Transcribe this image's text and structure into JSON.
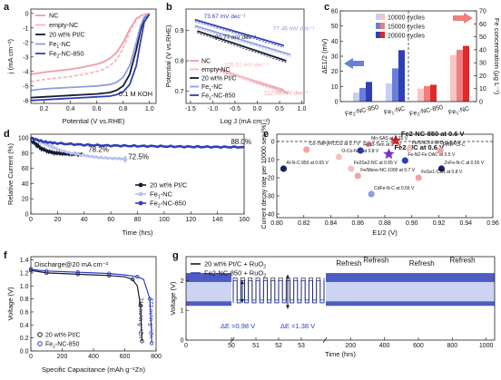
{
  "panels": [
    "a",
    "b",
    "c",
    "d",
    "e",
    "f",
    "g"
  ],
  "chart_data": [
    {
      "panel": "a",
      "type": "line",
      "xlabel": "Potential (V vs.RHE)",
      "ylabel": "j (mA cm⁻²)",
      "xlim": [
        0.1,
        1.05
      ],
      "ylim": [
        -6.2,
        0.3
      ],
      "xticks": [
        0.2,
        0.4,
        0.6,
        0.8,
        1.0
      ],
      "yticks": [
        0,
        -1,
        -2,
        -3,
        -4,
        -5,
        -6
      ],
      "annotation": "0.1 M KOH",
      "series": [
        {
          "name": "NC",
          "color": "#f39aa6",
          "dash": "",
          "x": [
            0.1,
            0.2,
            0.3,
            0.4,
            0.5,
            0.6,
            0.65,
            0.7,
            0.75,
            0.8,
            0.85,
            0.9,
            0.95,
            1.0
          ],
          "y": [
            -4.2,
            -4.05,
            -3.95,
            -3.85,
            -3.7,
            -3.5,
            -3.35,
            -3.1,
            -2.7,
            -2.0,
            -1.1,
            -0.35,
            -0.08,
            -0.02
          ]
        },
        {
          "name": "empty-NC",
          "color": "#f6b7c0",
          "dash": "4,2",
          "x": [
            0.1,
            0.2,
            0.3,
            0.4,
            0.5,
            0.6,
            0.65,
            0.7,
            0.75,
            0.8,
            0.85,
            0.9,
            0.95,
            1.0
          ],
          "y": [
            -4.7,
            -4.55,
            -4.45,
            -4.35,
            -4.2,
            -4.0,
            -3.85,
            -3.6,
            -3.2,
            -2.4,
            -1.3,
            -0.45,
            -0.1,
            -0.02
          ]
        },
        {
          "name": "20 wt% Pt/C",
          "color": "#141a33",
          "dash": "",
          "x": [
            0.1,
            0.2,
            0.3,
            0.4,
            0.5,
            0.6,
            0.7,
            0.75,
            0.8,
            0.85,
            0.9,
            0.93,
            0.96,
            1.0
          ],
          "y": [
            -5.8,
            -5.75,
            -5.7,
            -5.65,
            -5.6,
            -5.55,
            -5.45,
            -5.3,
            -5.0,
            -4.2,
            -2.5,
            -1.2,
            -0.3,
            -0.03
          ]
        },
        {
          "name": "Fe1-NC",
          "color": "#8e9ee0",
          "dash": "",
          "x": [
            0.1,
            0.2,
            0.3,
            0.4,
            0.5,
            0.6,
            0.7,
            0.75,
            0.8,
            0.85,
            0.9,
            0.93,
            0.96,
            1.0
          ],
          "y": [
            -5.3,
            -5.2,
            -5.15,
            -5.1,
            -5.05,
            -5.0,
            -4.9,
            -4.75,
            -4.4,
            -3.6,
            -2.0,
            -0.9,
            -0.25,
            -0.03
          ]
        },
        {
          "name": "Fe2-NC-850",
          "color": "#2f3fb8",
          "dash": "",
          "x": [
            0.1,
            0.2,
            0.3,
            0.4,
            0.5,
            0.6,
            0.7,
            0.75,
            0.8,
            0.85,
            0.9,
            0.93,
            0.96,
            1.0
          ],
          "y": [
            -6.0,
            -5.95,
            -5.9,
            -5.85,
            -5.8,
            -5.75,
            -5.7,
            -5.6,
            -5.4,
            -4.9,
            -3.6,
            -2.0,
            -0.6,
            -0.05
          ]
        }
      ],
      "legend": [
        {
          "label": "NC",
          "color": "#f39aa6"
        },
        {
          "label": "empty-NC",
          "color": "#f6b7c0"
        },
        {
          "label": "20 wt% Pt/C",
          "color": "#141a33"
        },
        {
          "label": "Fe",
          "sub": "1",
          "tail": "-NC",
          "color": "#8e9ee0"
        },
        {
          "label": "Fe",
          "sub": "2",
          "tail": "-NC-850",
          "color": "#2f3fb8"
        }
      ]
    },
    {
      "panel": "b",
      "type": "line",
      "xlabel": "Log J (mA cm⁻²)",
      "ylabel": "Potential (V vs.RHE)",
      "xlim": [
        -1.6,
        1.05
      ],
      "ylim": [
        0.66,
        0.97
      ],
      "xticks": [
        -1.5,
        -1.0,
        -0.5,
        0.0,
        0.5,
        1.0
      ],
      "yticks": [
        0.7,
        0.8,
        0.9
      ],
      "series": [
        {
          "name": "NC",
          "color": "#f39aa6",
          "x": [
            -0.9,
            0.7
          ],
          "y": [
            0.775,
            0.695
          ]
        },
        {
          "name": "empty-NC",
          "color": "#f6b7c0",
          "x": [
            -0.85,
            0.6
          ],
          "y": [
            0.77,
            0.705
          ]
        },
        {
          "name": "20 wt% Pt/C",
          "color": "#141a33",
          "x": [
            -1.35,
            0.65
          ],
          "y": [
            0.898,
            0.8
          ]
        },
        {
          "name": "Fe1-NC",
          "color": "#8e9ee0",
          "x": [
            -1.4,
            0.75
          ],
          "y": [
            0.915,
            0.82
          ]
        },
        {
          "name": "Fe2-NC-850",
          "color": "#2f3fb8",
          "x": [
            -1.4,
            0.6
          ],
          "y": [
            0.935,
            0.85
          ]
        }
      ],
      "slope_labels": [
        {
          "text": "73.67 mV dec⁻¹",
          "color": "#2f3fb8",
          "x": -1.2,
          "y": 0.94
        },
        {
          "text": "77.46 mV dec⁻¹",
          "color": "#8e9ee0",
          "x": 0.35,
          "y": 0.9
        },
        {
          "text": "80.77 mV dec⁻¹",
          "color": "#141a33",
          "x": -0.95,
          "y": 0.872
        },
        {
          "text": "105.52 mV dec⁻¹",
          "color": "#f6b7c0",
          "x": -0.75,
          "y": 0.78
        },
        {
          "text": "112.96 mV dec⁻¹",
          "color": "#f39aa6",
          "x": 0.15,
          "y": 0.688
        }
      ],
      "legend": [
        {
          "label": "NC",
          "color": "#f39aa6"
        },
        {
          "label": "empty-NC",
          "color": "#f6b7c0"
        },
        {
          "label": "20 wt% Pt/C",
          "color": "#141a33"
        },
        {
          "label": "Fe",
          "sub": "1",
          "tail": "-NC",
          "color": "#8e9ee0"
        },
        {
          "label": "Fe",
          "sub": "2",
          "tail": "-NC-850",
          "color": "#2f3fb8"
        }
      ]
    },
    {
      "panel": "c",
      "type": "bar",
      "left_ylabel": "ΔE1/2 (mV)",
      "right_ylabel": "Fe concentration (µg L⁻¹)",
      "left_ylim": [
        0,
        60
      ],
      "right_ylim": [
        0,
        70
      ],
      "left_yticks": [
        0,
        10,
        20,
        30,
        40,
        50,
        60
      ],
      "right_yticks": [
        0,
        10,
        20,
        30,
        40,
        50,
        60,
        70
      ],
      "legend": [
        {
          "label": "10000 cycles",
          "color_left": "#c7d0f2",
          "color_right": "#f7c5c5"
        },
        {
          "label": "15000 cycles",
          "color_left": "#6a7fd8",
          "color_right": "#ef7f7f"
        },
        {
          "label": "20000 cycles",
          "color_left": "#2f3fb8",
          "color_right": "#e02a2a"
        }
      ],
      "left_groups": [
        {
          "label": "Fe",
          "sub": "2",
          "tail": "-NC-850",
          "values": [
            6,
            9,
            13
          ]
        },
        {
          "label": "Fe",
          "sub": "1",
          "tail": "-NC",
          "values": [
            12,
            22,
            34
          ]
        }
      ],
      "right_groups": [
        {
          "label": "Fe",
          "sub": "2",
          "tail": "-NC-850",
          "values": [
            10,
            12,
            13
          ]
        },
        {
          "label": "Fe",
          "sub": "1",
          "tail": "-NC",
          "values": [
            36,
            40,
            43
          ]
        }
      ]
    },
    {
      "panel": "d",
      "type": "line",
      "xlabel": "Time (hrs)",
      "ylabel": "Relative Current (%)",
      "xlim": [
        0,
        160
      ],
      "ylim": [
        0,
        105
      ],
      "xticks": [
        0,
        20,
        40,
        60,
        80,
        100,
        120,
        140,
        160
      ],
      "yticks": [
        0,
        20,
        40,
        60,
        80,
        100
      ],
      "series": [
        {
          "name": "20 wt% Pt/C",
          "color": "#141a33",
          "x": [
            0,
            2,
            5,
            8,
            12,
            16,
            20,
            25,
            30,
            35,
            40
          ],
          "y": [
            100,
            95,
            90,
            86,
            83,
            81,
            80,
            79.2,
            78.8,
            78.4,
            78.2
          ]
        },
        {
          "name": "Fe1-NC",
          "color": "#b7c2ee",
          "x": [
            0,
            5,
            10,
            15,
            20,
            30,
            40,
            50,
            60,
            70,
            72
          ],
          "y": [
            100,
            97,
            93,
            89,
            85,
            80,
            77,
            74.5,
            73.3,
            72.7,
            72.5
          ]
        },
        {
          "name": "Fe2-NC-850",
          "color": "#2f3fb8",
          "x": [
            0,
            10,
            20,
            40,
            60,
            80,
            100,
            120,
            140,
            160
          ],
          "y": [
            100,
            95,
            93,
            91,
            90,
            89.5,
            89,
            88.5,
            88.2,
            88.0
          ]
        }
      ],
      "labels": [
        {
          "text": "78.2%",
          "x": 43,
          "y": 82
        },
        {
          "text": "72.5%",
          "x": 73,
          "y": 72
        },
        {
          "text": "88.0%",
          "x": 150,
          "y": 92
        }
      ],
      "legend": [
        {
          "label": "20 wt% Pt/C",
          "color": "#141a33"
        },
        {
          "label": "Fe",
          "sub": "1",
          "tail": "-NC",
          "color": "#b7c2ee"
        },
        {
          "label": "Fe",
          "sub": "2",
          "tail": "-NC-850",
          "color": "#2f3fb8"
        }
      ]
    },
    {
      "panel": "e",
      "type": "scatter",
      "xlabel": "E1/2 (V)",
      "ylabel": "Current decay rate per 10000 sec (%)",
      "xlim": [
        0.8,
        0.96
      ],
      "ylim": [
        -42,
        4
      ],
      "xticks": [
        0.8,
        0.82,
        0.84,
        0.86,
        0.88,
        0.9,
        0.92,
        0.94,
        0.96
      ],
      "yticks": [
        0,
        -10,
        -20,
        -30,
        -40
      ],
      "reference_y": 0,
      "points": [
        {
          "label": "Fe2-NC-850 at 0.6 V",
          "x": 0.888,
          "y": 0.5,
          "color": "#e0242a",
          "marker": "star",
          "bold": true
        },
        {
          "label": "Fe2-NC at 0.6 V",
          "x": 0.883,
          "y": -7,
          "color": "#7a2ed0",
          "marker": "star",
          "bold": true
        },
        {
          "label": "Mn-SAS at 0.75 V",
          "x": 0.868,
          "y": -1.5,
          "color": "#f1a3a3"
        },
        {
          "label": "Co-TMPyP/CCG at 0.7 V",
          "x": 0.822,
          "y": -4.5,
          "color": "#f1a3a3"
        },
        {
          "label": "FeN3-Tem at 0.7 V",
          "x": 0.862,
          "y": -5,
          "color": "#2f3fb8"
        },
        {
          "label": "FeNP-Cl-C",
          "x": 0.921,
          "y": -5,
          "color": "#f1a3a3"
        },
        {
          "label": "Fe/SNCFs-NH3 at 0.8 V",
          "x": 0.898,
          "y": -4,
          "color": "#f6c1c1"
        },
        {
          "label": "O-Co-N/C at 0.8 V",
          "x": 0.846,
          "y": -8.5,
          "color": "#f6c1c1"
        },
        {
          "label": "Fe-N2-Fe DAC at 0.5 V",
          "x": 0.895,
          "y": -10.5,
          "color": "#2f3fb8"
        },
        {
          "label": "Al-N-C-950 at 0.65 V",
          "x": 0.805,
          "y": -15,
          "color": "#1a2360"
        },
        {
          "label": "Fe2Se2-NC at 0.65 V",
          "x": 0.855,
          "y": -15,
          "color": "#f6c1c1"
        },
        {
          "label": "Fe/Meso-NC-1000 at 0.7 V",
          "x": 0.86,
          "y": -19,
          "color": "#f1a3a3"
        },
        {
          "label": "ZnFe-N-C at 0.55 V",
          "x": 0.922,
          "y": -15,
          "color": "#1a2360"
        },
        {
          "label": "FeSe1-C2N at 0.8 V",
          "x": 0.905,
          "y": -20,
          "color": "#f1a3a3"
        },
        {
          "label": "CdFe-N-C at 0.55 V",
          "x": 0.87,
          "y": -29,
          "color": "#8e9ee0"
        }
      ]
    },
    {
      "panel": "f",
      "type": "line",
      "xlabel": "Specific Capacitance (mAh g⁻¹Zn)",
      "ylabel": "Voltage (V)",
      "xlim": [
        0,
        800
      ],
      "ylim": [
        0,
        1.45
      ],
      "xticks": [
        0,
        200,
        400,
        600,
        800
      ],
      "yticks": [
        0.0,
        0.2,
        0.4,
        0.6,
        0.8,
        1.0,
        1.2,
        1.4
      ],
      "annotation": "Discharge@20 mA cm⁻²",
      "series": [
        {
          "name": "20 wt% Pt/C",
          "color": "#141a33",
          "x": [
            0,
            50,
            100,
            200,
            300,
            400,
            500,
            600,
            650,
            680,
            700,
            705,
            710
          ],
          "y": [
            1.24,
            1.22,
            1.2,
            1.19,
            1.18,
            1.17,
            1.16,
            1.14,
            1.1,
            1.0,
            0.7,
            0.4,
            0.15
          ]
        },
        {
          "name": "Fe2-NC-850",
          "color": "#2f3fb8",
          "x": [
            0,
            50,
            100,
            200,
            300,
            400,
            500,
            600,
            680,
            720,
            760,
            768,
            772
          ],
          "y": [
            1.26,
            1.24,
            1.23,
            1.22,
            1.21,
            1.2,
            1.19,
            1.17,
            1.14,
            1.1,
            0.8,
            0.4,
            0.12
          ]
        }
      ],
      "value_labels": [
        {
          "text": "710 mAh g⁻¹Zn",
          "color": "#141a33",
          "x": 690,
          "y": 0.82
        },
        {
          "text": "772 mAh g⁻¹Zn",
          "color": "#2f3fb8",
          "x": 755,
          "y": 0.82
        }
      ]
    },
    {
      "panel": "g",
      "type": "line",
      "xlabel": "Time (hrs)",
      "ylabel": "Voltage (V)",
      "ylim": [
        0,
        2.8
      ],
      "yticks": [
        0,
        1,
        2
      ],
      "xticks": [
        0,
        50,
        51,
        52,
        53,
        200,
        400,
        600,
        800,
        1000
      ],
      "segments": [
        {
          "range": [
            0,
            50
          ],
          "kind": "dense"
        },
        {
          "range": [
            50,
            54
          ],
          "kind": "zoom"
        },
        {
          "range": [
            54,
            1050
          ],
          "kind": "dense"
        }
      ],
      "series": [
        {
          "name": "20 wt% Pt/C + RuO2",
          "color": "#141a33"
        },
        {
          "name": "Fe2-NC-850 + RuO2",
          "color": "#2f3fb8"
        }
      ],
      "charge_v": 2.0,
      "discharge_v": 1.25,
      "gap_labels": [
        {
          "text": "ΔE =0.98 V"
        },
        {
          "text": "ΔE =1.38 V"
        }
      ],
      "refresh_labels": [
        "Refresh",
        "Refresh",
        "Refresh",
        "Refresh"
      ],
      "refresh_x": [
        190,
        350,
        620,
        860
      ]
    }
  ]
}
